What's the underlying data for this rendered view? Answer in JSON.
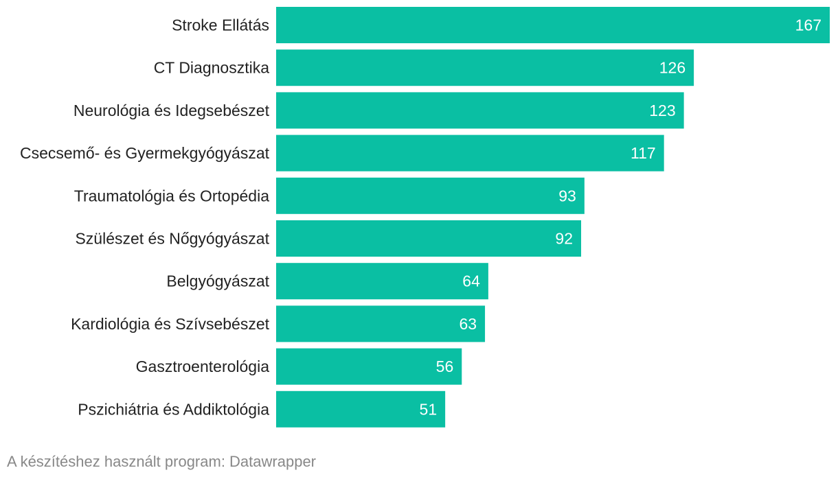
{
  "chart_data": {
    "type": "bar",
    "orientation": "horizontal",
    "categories": [
      "Stroke Ellátás",
      "CT Diagnosztika",
      "Neurológia és Idegsebészet",
      "Csecsemő- és Gyermekgyógyászat",
      "Traumatológia és Ortopédia",
      "Szülészet és Nőgyógyászat",
      "Belgyógyászat",
      "Kardiológia és Szívsebészet",
      "Gasztroenterológia",
      "Pszichiátria és Addiktológia"
    ],
    "values": [
      167,
      126,
      123,
      117,
      93,
      92,
      64,
      63,
      56,
      51
    ],
    "value_labels": [
      "167",
      "126",
      "123",
      "117",
      "93",
      "92",
      "64",
      "63",
      "56",
      "51"
    ],
    "xlim": [
      0,
      167
    ],
    "bar_color": "#0abfa3",
    "grid": false,
    "legend": "none"
  },
  "footer": {
    "credit": "A készítéshez használt program: Datawrapper"
  }
}
